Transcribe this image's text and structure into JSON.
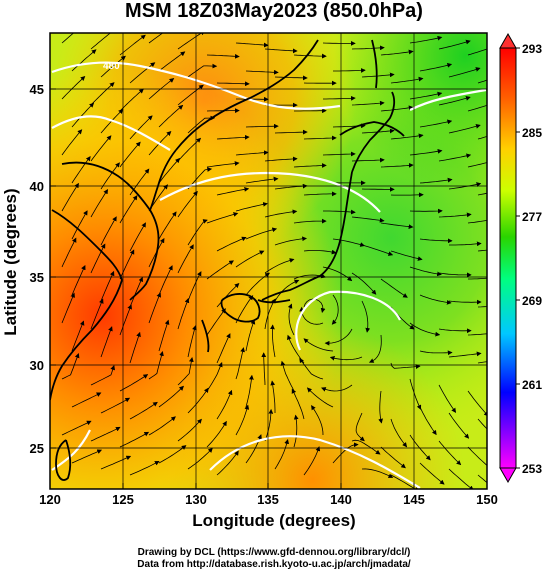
{
  "title": "MSM 18Z03May2023 (850.0hPa)",
  "axes": {
    "xlabel": "Longitude (degrees)",
    "ylabel": "Latitude  (degrees)",
    "x_ticks": [
      "120",
      "125",
      "130",
      "135",
      "140",
      "145",
      "150"
    ],
    "y_ticks": [
      "45",
      "40",
      "35",
      "30",
      "25"
    ]
  },
  "colorbar": {
    "ticks": [
      "293",
      "285",
      "277",
      "269",
      "261",
      "253"
    ],
    "colors": [
      "#ff00ff",
      "#0000ff",
      "#00c8ff",
      "#00ff80",
      "#2ad400",
      "#ccff00",
      "#ffd000",
      "#ff6000",
      "#ff0000"
    ]
  },
  "contour_label": "480",
  "credits": {
    "line1": "Drawing by DCL (https://www.gfd-dennou.org/library/dcl/)",
    "line2": "Data from http://database.rish.kyoto-u.ac.jp/arch/jmadata/"
  }
}
